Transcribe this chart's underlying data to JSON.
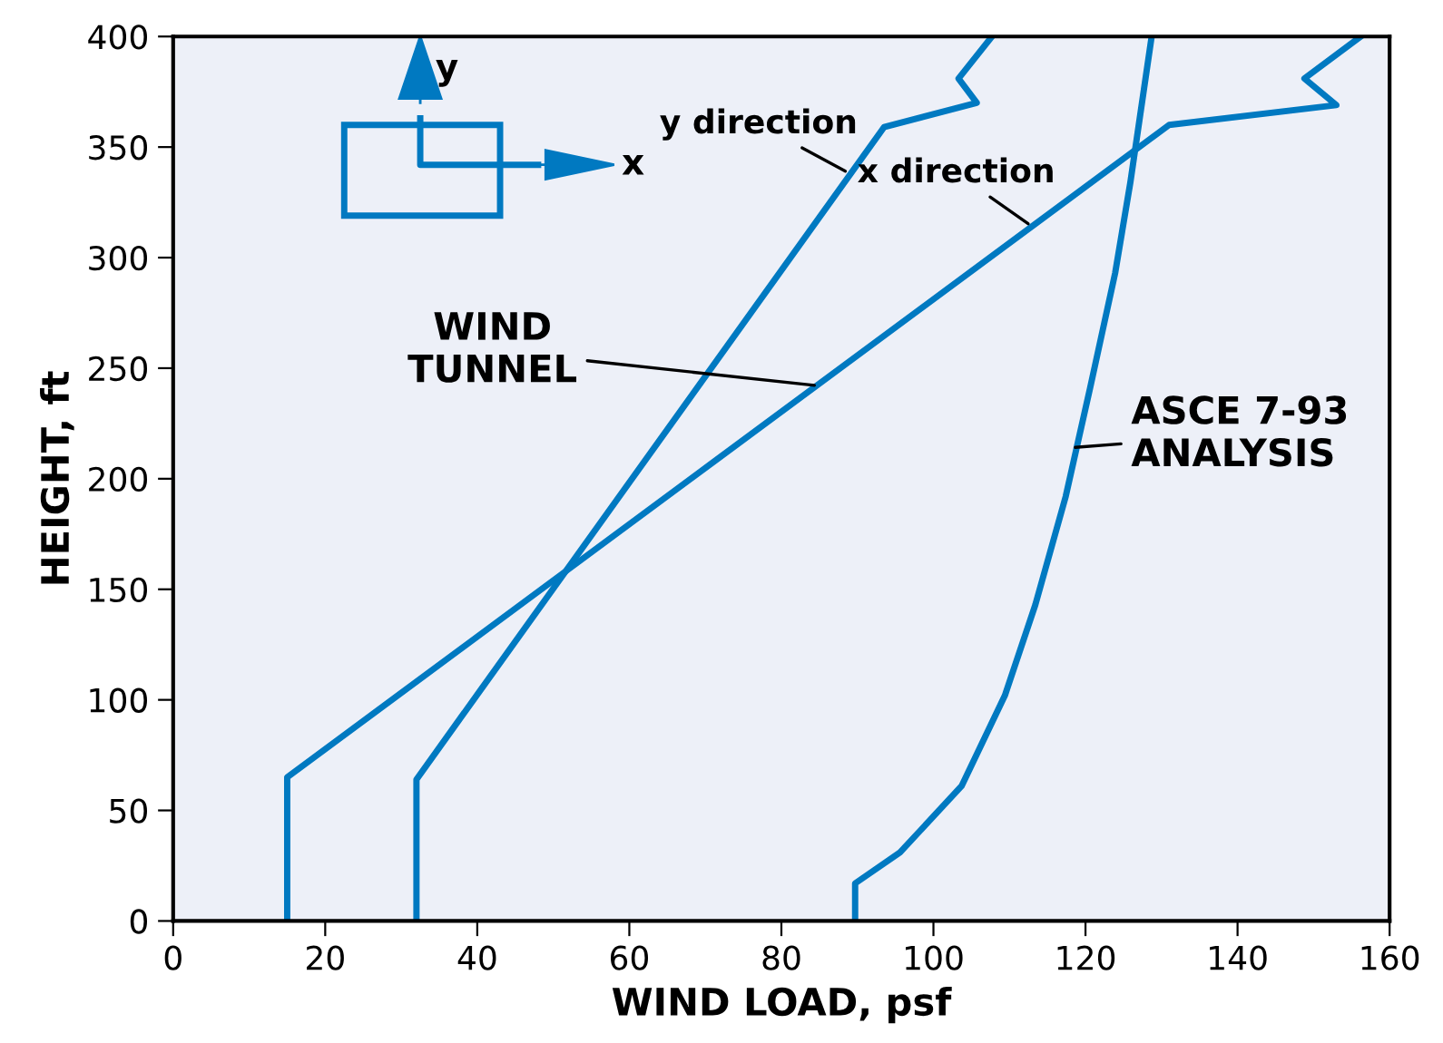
{
  "chart_data": {
    "type": "line",
    "xlabel": "WIND LOAD, psf",
    "ylabel": "HEIGHT, ft",
    "xlim": [
      0,
      160
    ],
    "xticks": [
      0,
      20,
      40,
      60,
      80,
      100,
      120,
      140,
      160
    ],
    "ylim": [
      0,
      400
    ],
    "yticks": [
      0,
      50,
      100,
      150,
      200,
      250,
      300,
      350,
      400
    ],
    "grid": false,
    "marker": "none",
    "line_style": "solid",
    "series": [
      {
        "color": "#0079c1",
        "x": [
          32,
          32,
          93.5,
          105.7,
          103.3,
          107.7
        ],
        "values": [
          0,
          64,
          359,
          370,
          381,
          400
        ]
      },
      {
        "color": "#0079c1",
        "x": [
          15,
          15,
          131,
          153,
          148.8,
          156.2
        ],
        "values": [
          0,
          65,
          360,
          369,
          381,
          400
        ]
      },
      {
        "color": "#0079c1",
        "x": [
          89.7,
          89.7,
          95.6,
          103.7,
          109.4,
          113.4,
          117.4,
          120.6,
          123.9,
          125.9,
          128.7
        ],
        "values": [
          0,
          17,
          31,
          61,
          102,
          143,
          192,
          241,
          293,
          334,
          400
        ]
      }
    ],
    "annotations": [
      {
        "text": "y direction",
        "x": 89,
        "y": 338
      },
      {
        "text": "x direction",
        "x": 113,
        "y": 314
      },
      {
        "text": "WIND\nTUNNEL",
        "x": 85,
        "y": 242
      },
      {
        "text": "ASCE 7-93\nANALYSIS",
        "x": 118,
        "y": 214
      },
      "x",
      "y"
    ]
  }
}
